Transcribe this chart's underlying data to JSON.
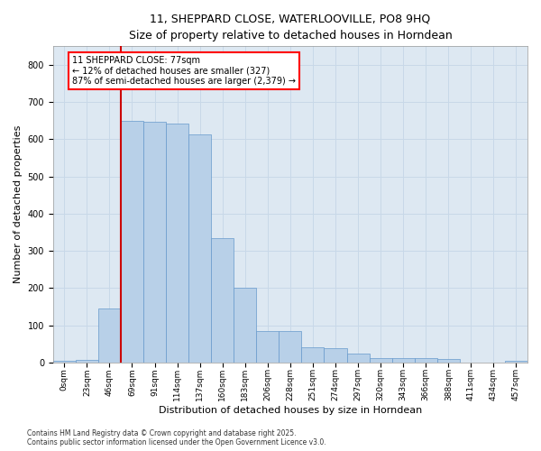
{
  "title_line1": "11, SHEPPARD CLOSE, WATERLOOVILLE, PO8 9HQ",
  "title_line2": "Size of property relative to detached houses in Horndean",
  "xlabel": "Distribution of detached houses by size in Horndean",
  "ylabel": "Number of detached properties",
  "bin_labels": [
    "0sqm",
    "23sqm",
    "46sqm",
    "69sqm",
    "91sqm",
    "114sqm",
    "137sqm",
    "160sqm",
    "183sqm",
    "206sqm",
    "228sqm",
    "251sqm",
    "274sqm",
    "297sqm",
    "320sqm",
    "343sqm",
    "366sqm",
    "388sqm",
    "411sqm",
    "434sqm",
    "457sqm"
  ],
  "bar_heights": [
    5,
    8,
    145,
    650,
    648,
    643,
    612,
    335,
    200,
    85,
    85,
    40,
    38,
    25,
    12,
    12,
    12,
    10,
    0,
    0,
    5
  ],
  "bar_color": "#b8d0e8",
  "bar_edge_color": "#6699cc",
  "annotation_text": "11 SHEPPARD CLOSE: 77sqm\n← 12% of detached houses are smaller (327)\n87% of semi-detached houses are larger (2,379) →",
  "annotation_box_color": "white",
  "annotation_border_color": "red",
  "red_line_color": "#cc0000",
  "grid_color": "#c8d8e8",
  "background_color": "#dde8f2",
  "ylim": [
    0,
    850
  ],
  "yticks": [
    0,
    100,
    200,
    300,
    400,
    500,
    600,
    700,
    800
  ],
  "footer_line1": "Contains HM Land Registry data © Crown copyright and database right 2025.",
  "footer_line2": "Contains public sector information licensed under the Open Government Licence v3.0."
}
